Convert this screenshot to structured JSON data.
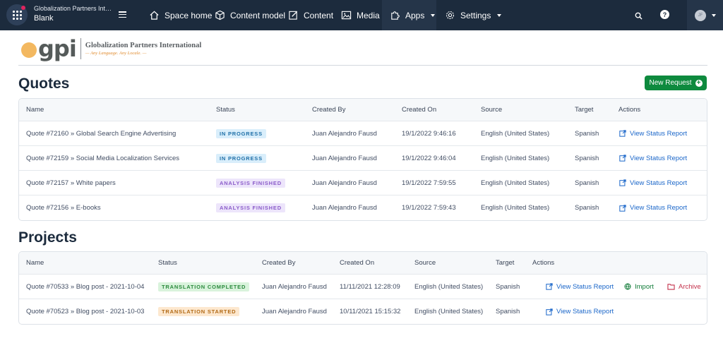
{
  "topbar": {
    "org_name": "Globalization Partners Interna...",
    "environment": "Blank",
    "nav": [
      {
        "label": "Space home",
        "icon": "home-icon"
      },
      {
        "label": "Content model",
        "icon": "cube-icon"
      },
      {
        "label": "Content",
        "icon": "edit-icon"
      },
      {
        "label": "Media",
        "icon": "image-icon"
      },
      {
        "label": "Apps",
        "icon": "puzzle-icon"
      },
      {
        "label": "Settings",
        "icon": "gear-icon"
      }
    ],
    "help_label": "?",
    "user_initials": "JF"
  },
  "brand": {
    "logo_text": "gpi",
    "company_name": "Globalization Partners International",
    "tagline": "— Any Language. Any Locale. —"
  },
  "quotes": {
    "title": "Quotes",
    "new_request_label": "New Request",
    "columns": [
      "Name",
      "Status",
      "Created By",
      "Created On",
      "Source",
      "Target",
      "Actions"
    ],
    "rows": [
      {
        "name": "Quote #72160 » Global Search Engine Advertising",
        "status": "IN PROGRESS",
        "status_kind": "progress",
        "created_by": "Juan Alejandro Fausd",
        "created_on": "19/1/2022 9:46:16",
        "source": "English (United States)",
        "target": "Spanish",
        "action": "View Status Report"
      },
      {
        "name": "Quote #72159 » Social Media Localization Services",
        "status": "IN PROGRESS",
        "status_kind": "progress",
        "created_by": "Juan Alejandro Fausd",
        "created_on": "19/1/2022 9:46:04",
        "source": "English (United States)",
        "target": "Spanish",
        "action": "View Status Report"
      },
      {
        "name": "Quote #72157 » White papers",
        "status": "ANALYSIS FINISHED",
        "status_kind": "analysis",
        "created_by": "Juan Alejandro Fausd",
        "created_on": "19/1/2022 7:59:55",
        "source": "English (United States)",
        "target": "Spanish",
        "action": "View Status Report"
      },
      {
        "name": "Quote #72156 » E-books",
        "status": "ANALYSIS FINISHED",
        "status_kind": "analysis",
        "created_by": "Juan Alejandro Fausd",
        "created_on": "19/1/2022 7:59:43",
        "source": "English (United States)",
        "target": "Spanish",
        "action": "View Status Report"
      }
    ]
  },
  "projects": {
    "title": "Projects",
    "columns": [
      "Name",
      "Status",
      "Created By",
      "Created On",
      "Source",
      "Target",
      "Actions"
    ],
    "rows": [
      {
        "name": "Quote #70533 » Blog post - 2021-10-04",
        "status": "TRANSLATION COMPLETED",
        "status_kind": "completed",
        "created_by": "Juan Alejandro Fausd",
        "created_on": "11/11/2021 12:28:09",
        "source": "English (United States)",
        "target": "Spanish",
        "action": "View Status Report",
        "import_label": "Import",
        "archive_label": "Archive"
      },
      {
        "name": "Quote #70523 » Blog post - 2021-10-03",
        "status": "TRANSLATION STARTED",
        "status_kind": "started",
        "created_by": "Juan Alejandro Fausd",
        "created_on": "10/11/2021 15:15:32",
        "source": "English (United States)",
        "target": "Spanish",
        "action": "View Status Report"
      }
    ]
  },
  "colors": {
    "topbar": "#1c2b3d",
    "accent_green": "#0e8a3e",
    "link_blue": "#1a66c9",
    "archive_red": "#c4314b"
  }
}
